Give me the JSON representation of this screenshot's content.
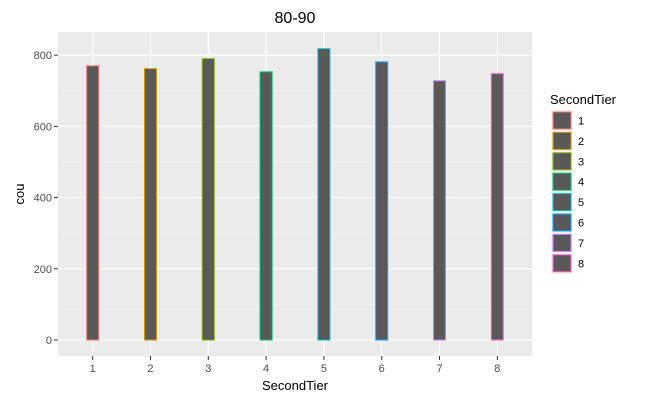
{
  "chart_data": {
    "type": "bar",
    "title": "80-90",
    "xlabel": "SecondTier",
    "ylabel": "cou",
    "categories": [
      "1",
      "2",
      "3",
      "4",
      "5",
      "6",
      "7",
      "8"
    ],
    "values": [
      770,
      762,
      790,
      753,
      818,
      781,
      728,
      748
    ],
    "ylim": [
      -45,
      865
    ],
    "yticks": [
      0,
      200,
      400,
      600,
      800
    ],
    "ytick_labels": [
      "0",
      "200",
      "400",
      "600",
      "800"
    ],
    "grid": true,
    "fill_color": "#595959",
    "panel_background": "#ebebeb",
    "legend": {
      "title": "SecondTier",
      "position": "right",
      "labels": [
        "1",
        "2",
        "3",
        "4",
        "5",
        "6",
        "7",
        "8"
      ]
    },
    "colors": [
      "#F8766D",
      "#CD9600",
      "#7CAE00",
      "#00BE67",
      "#00BFC4",
      "#00A9FF",
      "#C77CFF",
      "#FF61CC"
    ]
  }
}
